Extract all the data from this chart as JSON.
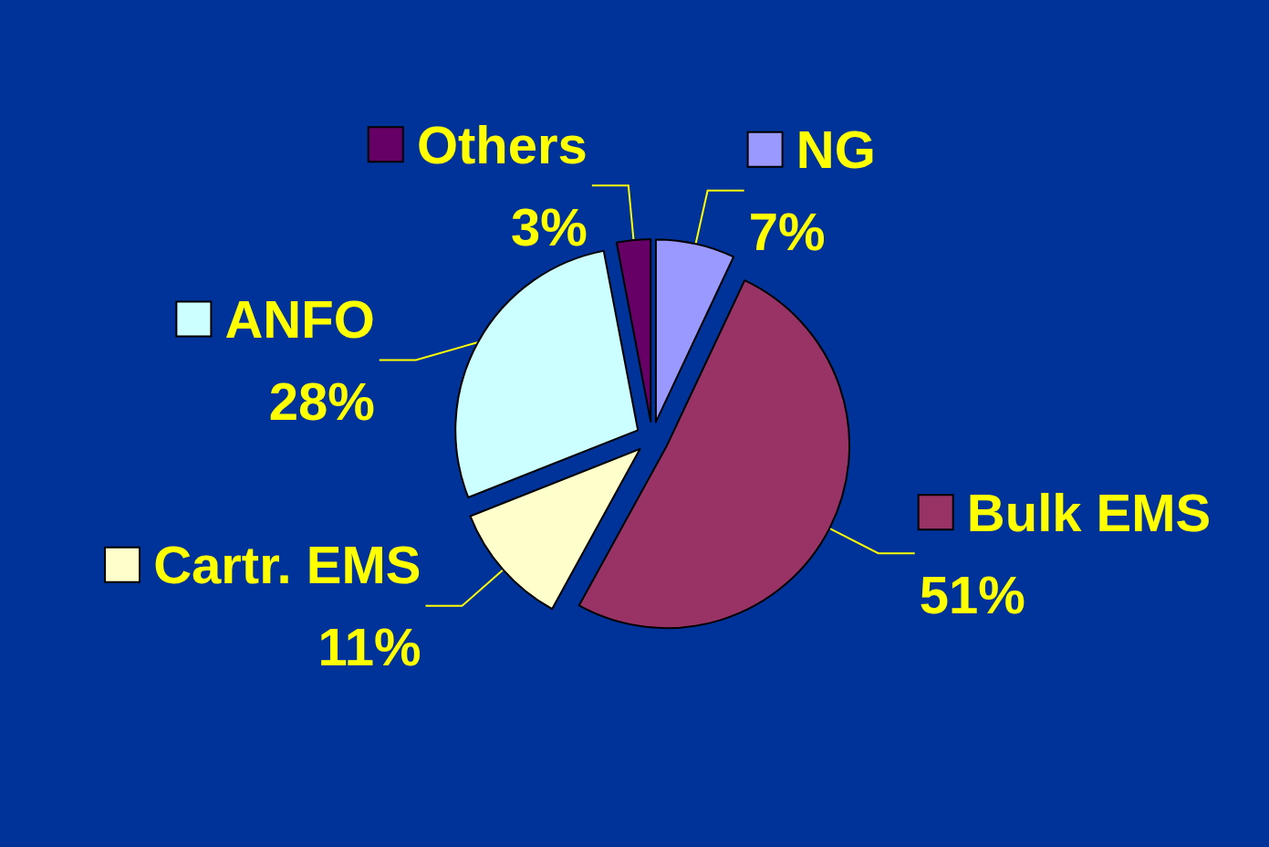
{
  "chart_data": {
    "type": "pie",
    "categories": [
      "NG",
      "Bulk EMS",
      "Cartr. EMS",
      "ANFO",
      "Others"
    ],
    "values": [
      7,
      51,
      11,
      28,
      3
    ],
    "value_labels": [
      "7%",
      "51%",
      "11%",
      "28%",
      "3%"
    ],
    "colors": [
      "#9999ff",
      "#993366",
      "#ffffcc",
      "#ccffff",
      "#660066"
    ],
    "legend": "right"
  }
}
